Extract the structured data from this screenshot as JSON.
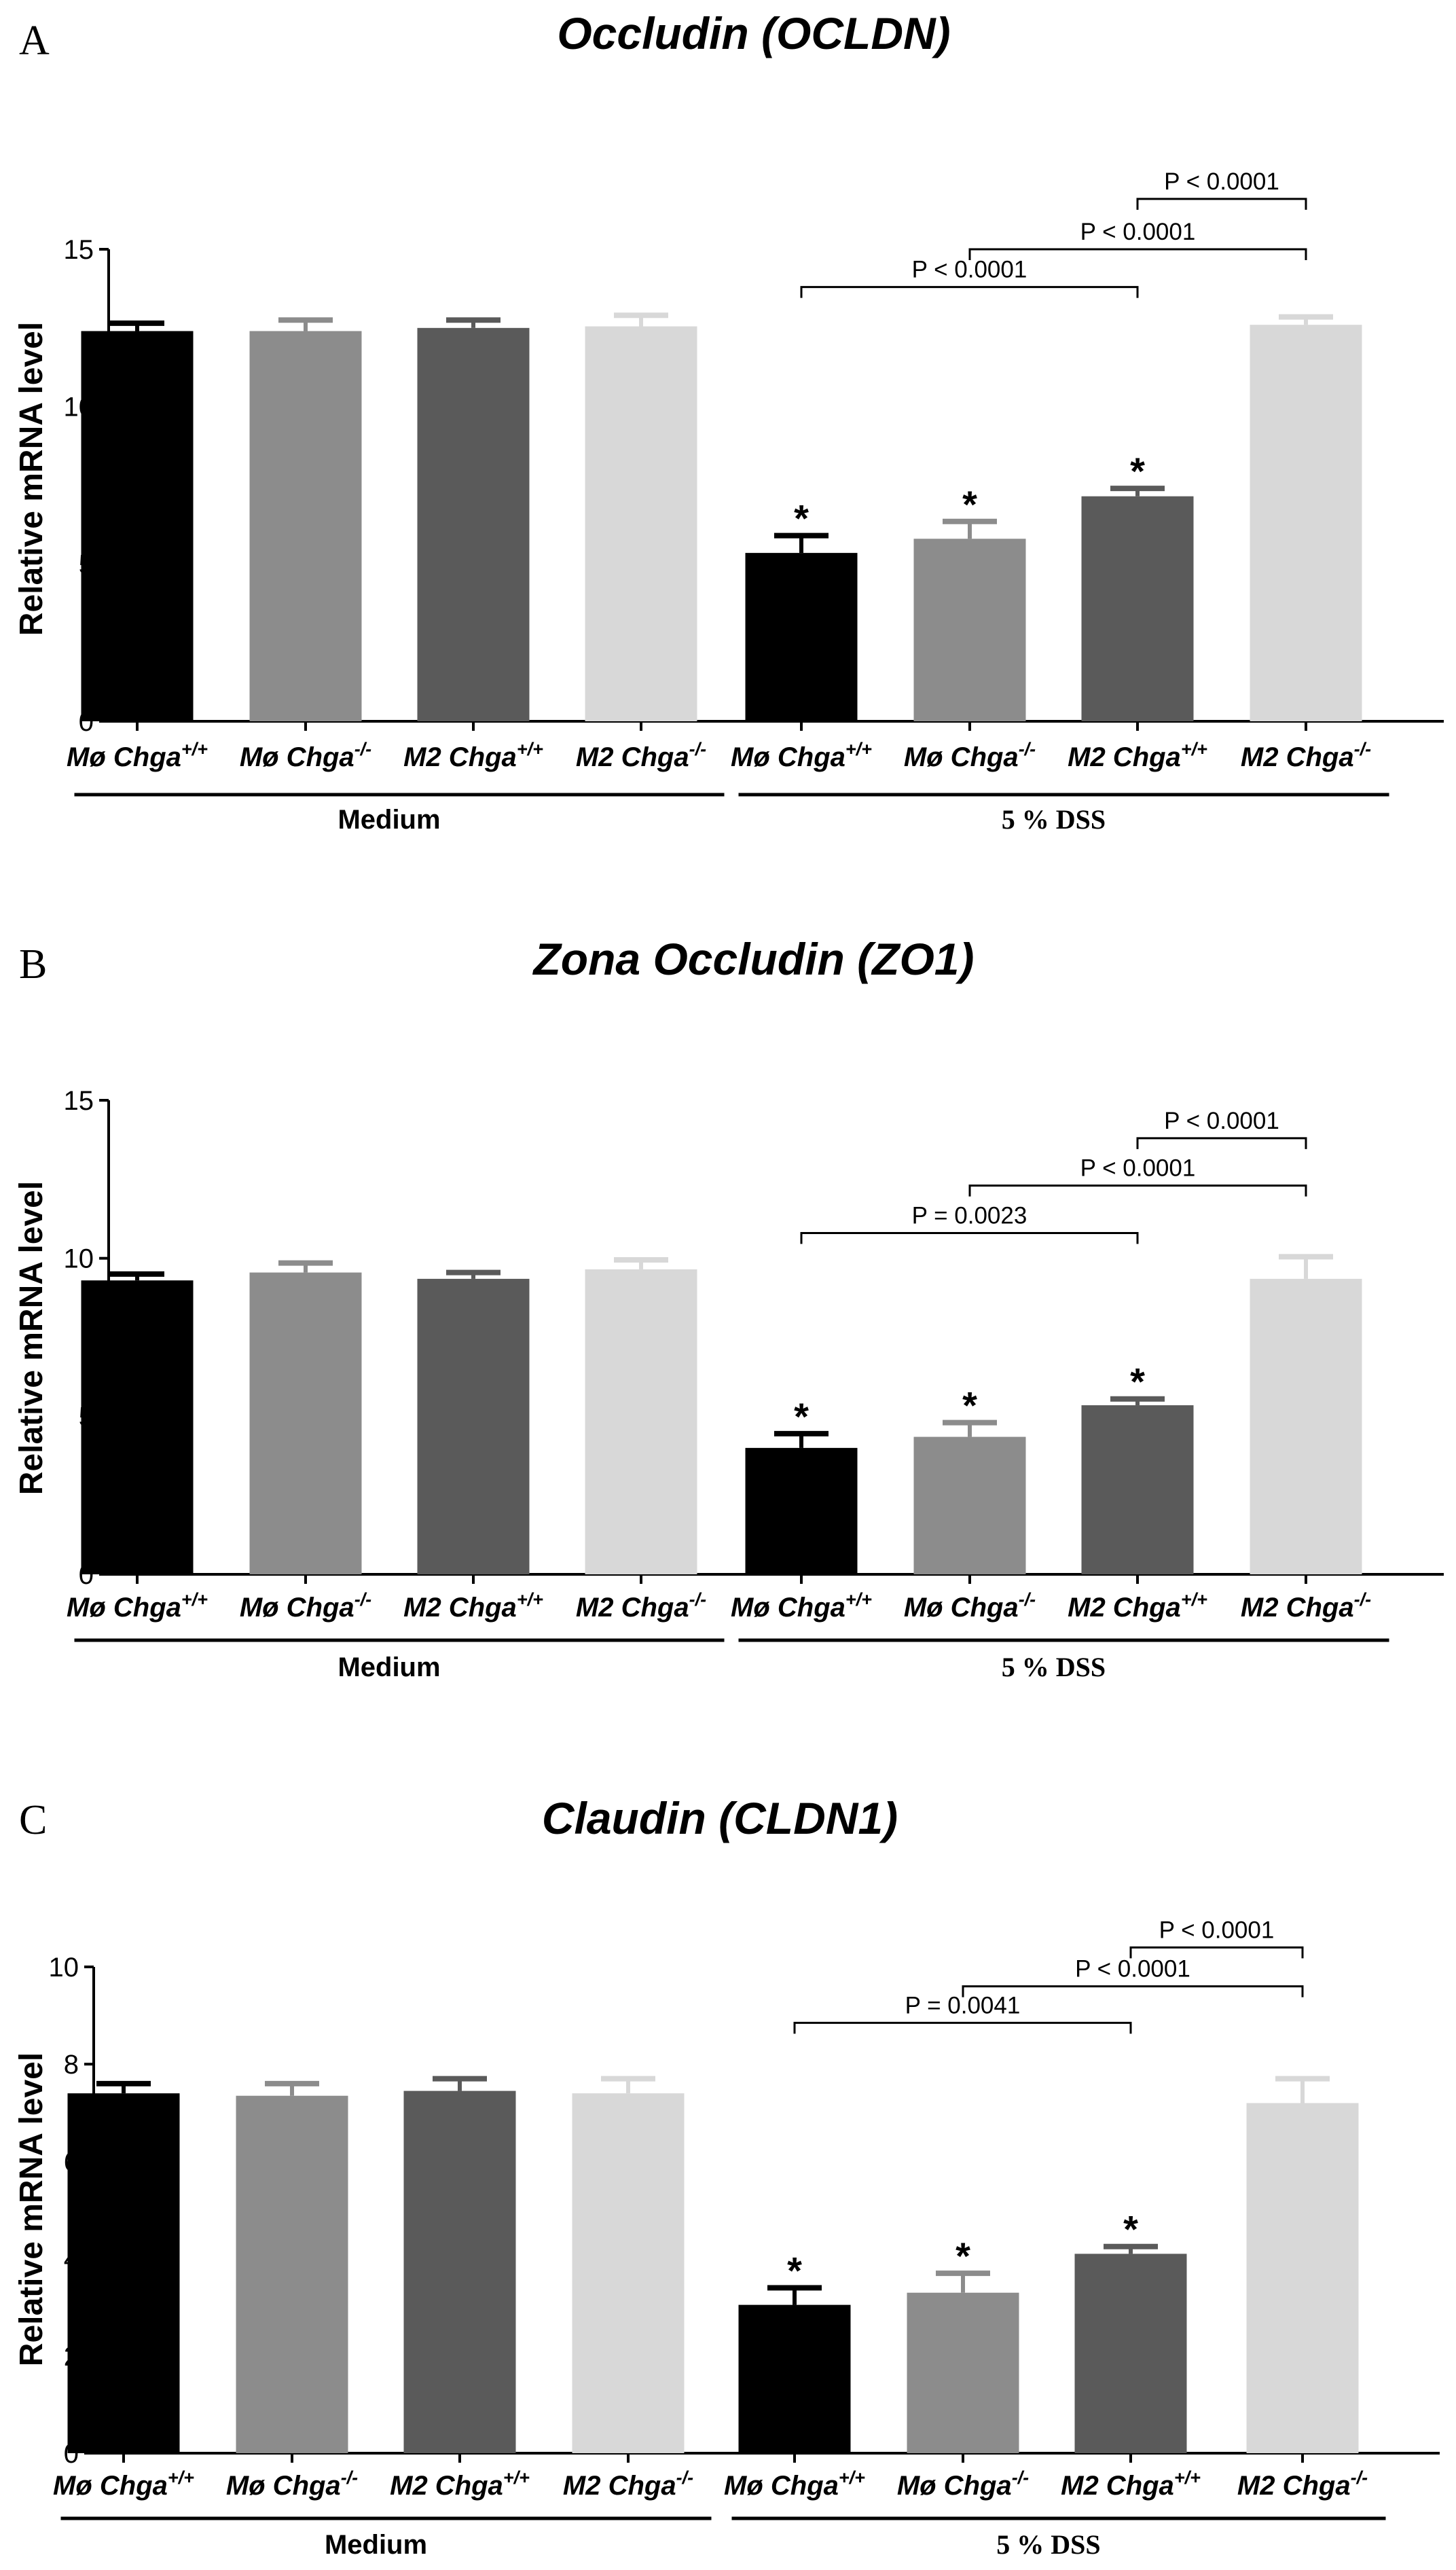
{
  "chart_data": [
    {
      "type": "bar",
      "panel": "A",
      "title": "Occludin (OCLDN)",
      "ylabel": "Relative mRNA level",
      "xlabel": "",
      "ylim": [
        0,
        15
      ],
      "yticks": [
        0,
        5,
        10,
        15
      ],
      "categories": [
        {
          "base": "Mø Chga",
          "sup": "+/+"
        },
        {
          "base": "Mø Chga",
          "sup": "-/-"
        },
        {
          "base": "M2 Chga",
          "sup": "+/+"
        },
        {
          "base": "M2 Chga",
          "sup": "-/-"
        },
        {
          "base": "Mø Chga",
          "sup": "+/+"
        },
        {
          "base": "Mø Chga",
          "sup": "-/-"
        },
        {
          "base": "M2 Chga",
          "sup": "+/+"
        },
        {
          "base": "M2 Chga",
          "sup": "-/-"
        }
      ],
      "values": [
        12.4,
        12.4,
        12.5,
        12.55,
        5.35,
        5.8,
        7.15,
        12.6
      ],
      "errors": [
        0.25,
        0.35,
        0.25,
        0.35,
        0.55,
        0.55,
        0.25,
        0.25
      ],
      "colors": [
        "#000000",
        "#8c8c8c",
        "#5a5a5a",
        "#d8d8d8",
        "#000000",
        "#8c8c8c",
        "#5a5a5a",
        "#d8d8d8"
      ],
      "significant": [
        false,
        false,
        false,
        false,
        true,
        true,
        true,
        false
      ],
      "star_label": "*",
      "groups": [
        {
          "label": "Medium",
          "from": 0,
          "to": 3,
          "style": "sans"
        },
        {
          "label": "5 % DSS",
          "from": 4,
          "to": 7,
          "style": "serif"
        }
      ],
      "comparisons": [
        {
          "from": 4,
          "to": 6,
          "label": "P < 0.0001",
          "y": 13.8
        },
        {
          "from": 5,
          "to": 7,
          "label": "P < 0.0001",
          "y": 15.0
        },
        {
          "from": 6,
          "to": 7,
          "label": "P < 0.0001",
          "y": 16.6
        }
      ]
    },
    {
      "type": "bar",
      "panel": "B",
      "title": "Zona Occludin (ZO1)",
      "ylabel": "Relative mRNA level",
      "xlabel": "",
      "ylim": [
        0,
        15
      ],
      "yticks": [
        0,
        5,
        10,
        15
      ],
      "categories": [
        {
          "base": "Mø Chga",
          "sup": "+/+"
        },
        {
          "base": "Mø Chga",
          "sup": "-/-"
        },
        {
          "base": "M2 Chga",
          "sup": "+/+"
        },
        {
          "base": "M2 Chga",
          "sup": "-/-"
        },
        {
          "base": "Mø Chga",
          "sup": "+/+"
        },
        {
          "base": "Mø Chga",
          "sup": "-/-"
        },
        {
          "base": "M2 Chga",
          "sup": "+/+"
        },
        {
          "base": "M2 Chga",
          "sup": "-/-"
        }
      ],
      "values": [
        9.3,
        9.55,
        9.35,
        9.65,
        4.0,
        4.35,
        5.35,
        9.35
      ],
      "errors": [
        0.2,
        0.3,
        0.2,
        0.3,
        0.45,
        0.45,
        0.2,
        0.7
      ],
      "colors": [
        "#000000",
        "#8c8c8c",
        "#5a5a5a",
        "#d8d8d8",
        "#000000",
        "#8c8c8c",
        "#5a5a5a",
        "#d8d8d8"
      ],
      "significant": [
        false,
        false,
        false,
        false,
        true,
        true,
        true,
        false
      ],
      "star_label": "*",
      "groups": [
        {
          "label": "Medium",
          "from": 0,
          "to": 3,
          "style": "sans"
        },
        {
          "label": "5 % DSS",
          "from": 4,
          "to": 7,
          "style": "serif"
        }
      ],
      "comparisons": [
        {
          "from": 4,
          "to": 6,
          "label": "P = 0.0023",
          "y": 10.8
        },
        {
          "from": 5,
          "to": 7,
          "label": "P < 0.0001",
          "y": 12.3
        },
        {
          "from": 6,
          "to": 7,
          "label": "P < 0.0001",
          "y": 13.8
        }
      ]
    },
    {
      "type": "bar",
      "panel": "C",
      "title": "Claudin (CLDN1)",
      "ylabel": "Relative mRNA level",
      "xlabel": "",
      "ylim": [
        0,
        10
      ],
      "yticks": [
        0,
        2,
        4,
        6,
        8,
        10
      ],
      "categories": [
        {
          "base": "Mø Chga",
          "sup": "+/+"
        },
        {
          "base": "Mø Chga",
          "sup": "-/-"
        },
        {
          "base": "M2 Chga",
          "sup": "+/+"
        },
        {
          "base": "M2 Chga",
          "sup": "-/-"
        },
        {
          "base": "Mø Chga",
          "sup": "+/+"
        },
        {
          "base": "Mø Chga",
          "sup": "-/-"
        },
        {
          "base": "M2 Chga",
          "sup": "+/+"
        },
        {
          "base": "M2 Chga",
          "sup": "-/-"
        }
      ],
      "values": [
        7.4,
        7.35,
        7.45,
        7.4,
        3.05,
        3.3,
        4.1,
        7.2
      ],
      "errors": [
        0.2,
        0.25,
        0.25,
        0.3,
        0.35,
        0.4,
        0.15,
        0.5
      ],
      "colors": [
        "#000000",
        "#8c8c8c",
        "#5a5a5a",
        "#d8d8d8",
        "#000000",
        "#8c8c8c",
        "#5a5a5a",
        "#d8d8d8"
      ],
      "significant": [
        false,
        false,
        false,
        false,
        true,
        true,
        true,
        false
      ],
      "star_label": "*",
      "groups": [
        {
          "label": "Medium",
          "from": 0,
          "to": 3,
          "style": "sans"
        },
        {
          "label": "5 % DSS",
          "from": 4,
          "to": 7,
          "style": "serif"
        }
      ],
      "comparisons": [
        {
          "from": 4,
          "to": 6,
          "label": "P = 0.0041",
          "y": 8.85
        },
        {
          "from": 5,
          "to": 7,
          "label": "P < 0.0001",
          "y": 9.6
        },
        {
          "from": 6,
          "to": 7,
          "label": "P < 0.0001",
          "y": 10.4
        }
      ]
    }
  ]
}
